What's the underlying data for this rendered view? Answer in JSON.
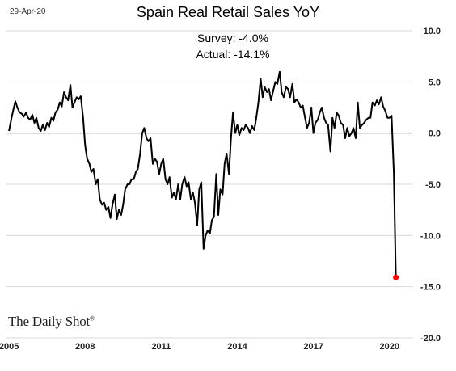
{
  "header": {
    "date": "29-Apr-20",
    "title": "Spain Real Retail Sales YoY"
  },
  "annotations": {
    "survey": "Survey: -4.0%",
    "actual": "Actual:  -14.1%"
  },
  "brand": {
    "text": "The Daily Shot",
    "mark": "®"
  },
  "colors": {
    "line": "#000000",
    "highlight_point": "#ff0000",
    "grid": "#d9d9d9",
    "zero_line": "#000000"
  },
  "chart_data": {
    "type": "line",
    "title": "Spain Real Retail Sales YoY",
    "xlabel": "",
    "ylabel": "",
    "xlim": [
      2004.9,
      2020.9
    ],
    "ylim": [
      -20,
      10
    ],
    "y_axis_position": "right",
    "grid": true,
    "x_ticks": [
      {
        "value": 2005,
        "label": "2005"
      },
      {
        "value": 2008,
        "label": "2008"
      },
      {
        "value": 2011,
        "label": "2011"
      },
      {
        "value": 2014,
        "label": "2014"
      },
      {
        "value": 2017,
        "label": "2017"
      },
      {
        "value": 2020,
        "label": "2020"
      }
    ],
    "y_ticks": [
      {
        "value": 10,
        "label": "10.0"
      },
      {
        "value": 5,
        "label": "5.0"
      },
      {
        "value": 0,
        "label": "0.0"
      },
      {
        "value": -5,
        "label": "-5.0"
      },
      {
        "value": -10,
        "label": "-10.0"
      },
      {
        "value": -15,
        "label": "-15.0"
      },
      {
        "value": -20,
        "label": "-20.0"
      }
    ],
    "series": [
      {
        "points": [
          [
            2005.0,
            0.2
          ],
          [
            2005.1,
            1.5
          ],
          [
            2005.2,
            2.6
          ],
          [
            2005.25,
            3.1
          ],
          [
            2005.33,
            2.5
          ],
          [
            2005.42,
            2.0
          ],
          [
            2005.5,
            1.9
          ],
          [
            2005.58,
            1.6
          ],
          [
            2005.67,
            2.0
          ],
          [
            2005.75,
            1.5
          ],
          [
            2005.83,
            1.3
          ],
          [
            2005.92,
            1.8
          ],
          [
            2006.0,
            1.0
          ],
          [
            2006.08,
            1.5
          ],
          [
            2006.17,
            0.5
          ],
          [
            2006.25,
            0.2
          ],
          [
            2006.33,
            0.8
          ],
          [
            2006.42,
            0.3
          ],
          [
            2006.5,
            1.0
          ],
          [
            2006.58,
            0.6
          ],
          [
            2006.67,
            1.5
          ],
          [
            2006.75,
            1.2
          ],
          [
            2006.83,
            2.0
          ],
          [
            2006.92,
            2.3
          ],
          [
            2007.0,
            3.0
          ],
          [
            2007.08,
            2.6
          ],
          [
            2007.17,
            4.0
          ],
          [
            2007.25,
            3.5
          ],
          [
            2007.33,
            3.2
          ],
          [
            2007.42,
            4.7
          ],
          [
            2007.5,
            2.5
          ],
          [
            2007.58,
            3.0
          ],
          [
            2007.67,
            3.5
          ],
          [
            2007.75,
            3.3
          ],
          [
            2007.83,
            3.6
          ],
          [
            2007.92,
            1.5
          ],
          [
            2008.0,
            -1.2
          ],
          [
            2008.08,
            -2.5
          ],
          [
            2008.17,
            -3.0
          ],
          [
            2008.25,
            -3.8
          ],
          [
            2008.33,
            -3.5
          ],
          [
            2008.42,
            -5.0
          ],
          [
            2008.5,
            -4.5
          ],
          [
            2008.58,
            -6.5
          ],
          [
            2008.67,
            -7.0
          ],
          [
            2008.75,
            -6.8
          ],
          [
            2008.83,
            -7.5
          ],
          [
            2008.92,
            -7.2
          ],
          [
            2009.0,
            -8.3
          ],
          [
            2009.08,
            -7.0
          ],
          [
            2009.17,
            -6.0
          ],
          [
            2009.25,
            -8.4
          ],
          [
            2009.33,
            -7.5
          ],
          [
            2009.42,
            -8.0
          ],
          [
            2009.5,
            -7.0
          ],
          [
            2009.58,
            -5.5
          ],
          [
            2009.67,
            -5.0
          ],
          [
            2009.75,
            -5.0
          ],
          [
            2009.83,
            -4.5
          ],
          [
            2009.92,
            -4.5
          ],
          [
            2010.0,
            -3.8
          ],
          [
            2010.08,
            -3.5
          ],
          [
            2010.17,
            -2.0
          ],
          [
            2010.25,
            0.0
          ],
          [
            2010.33,
            0.5
          ],
          [
            2010.42,
            -0.5
          ],
          [
            2010.5,
            -0.8
          ],
          [
            2010.58,
            -0.5
          ],
          [
            2010.67,
            -3.0
          ],
          [
            2010.75,
            -2.5
          ],
          [
            2010.83,
            -2.8
          ],
          [
            2010.92,
            -4.0
          ],
          [
            2011.0,
            -3.0
          ],
          [
            2011.08,
            -2.5
          ],
          [
            2011.17,
            -4.5
          ],
          [
            2011.25,
            -5.0
          ],
          [
            2011.33,
            -4.3
          ],
          [
            2011.42,
            -6.3
          ],
          [
            2011.5,
            -5.8
          ],
          [
            2011.58,
            -6.5
          ],
          [
            2011.67,
            -5.0
          ],
          [
            2011.75,
            -6.5
          ],
          [
            2011.83,
            -5.0
          ],
          [
            2011.92,
            -4.3
          ],
          [
            2012.0,
            -5.2
          ],
          [
            2012.08,
            -4.8
          ],
          [
            2012.17,
            -6.5
          ],
          [
            2012.25,
            -5.8
          ],
          [
            2012.33,
            -6.8
          ],
          [
            2012.42,
            -9.0
          ],
          [
            2012.5,
            -5.5
          ],
          [
            2012.58,
            -4.8
          ],
          [
            2012.67,
            -11.3
          ],
          [
            2012.75,
            -10.0
          ],
          [
            2012.83,
            -9.5
          ],
          [
            2012.92,
            -9.8
          ],
          [
            2013.0,
            -8.5
          ],
          [
            2013.08,
            -8.2
          ],
          [
            2013.17,
            -4.0
          ],
          [
            2013.25,
            -8.0
          ],
          [
            2013.33,
            -5.5
          ],
          [
            2013.42,
            -6.0
          ],
          [
            2013.5,
            -3.0
          ],
          [
            2013.58,
            -2.0
          ],
          [
            2013.67,
            -4.0
          ],
          [
            2013.75,
            -0.5
          ],
          [
            2013.83,
            2.0
          ],
          [
            2013.92,
            0.0
          ],
          [
            2014.0,
            0.8
          ],
          [
            2014.08,
            -0.2
          ],
          [
            2014.17,
            0.5
          ],
          [
            2014.25,
            0.3
          ],
          [
            2014.33,
            0.8
          ],
          [
            2014.42,
            0.5
          ],
          [
            2014.5,
            0.0
          ],
          [
            2014.58,
            0.7
          ],
          [
            2014.67,
            0.3
          ],
          [
            2014.75,
            1.5
          ],
          [
            2014.83,
            3.0
          ],
          [
            2014.92,
            5.3
          ],
          [
            2015.0,
            3.5
          ],
          [
            2015.08,
            4.5
          ],
          [
            2015.17,
            4.0
          ],
          [
            2015.25,
            4.3
          ],
          [
            2015.33,
            3.2
          ],
          [
            2015.42,
            4.2
          ],
          [
            2015.5,
            5.0
          ],
          [
            2015.58,
            4.8
          ],
          [
            2015.67,
            6.0
          ],
          [
            2015.75,
            4.0
          ],
          [
            2015.83,
            3.5
          ],
          [
            2015.92,
            4.5
          ],
          [
            2016.0,
            4.3
          ],
          [
            2016.08,
            3.5
          ],
          [
            2016.17,
            4.8
          ],
          [
            2016.25,
            3.0
          ],
          [
            2016.33,
            3.3
          ],
          [
            2016.42,
            3.0
          ],
          [
            2016.5,
            2.5
          ],
          [
            2016.58,
            2.7
          ],
          [
            2016.67,
            1.5
          ],
          [
            2016.75,
            0.5
          ],
          [
            2016.83,
            1.0
          ],
          [
            2016.92,
            2.5
          ],
          [
            2017.0,
            0.0
          ],
          [
            2017.08,
            1.0
          ],
          [
            2017.17,
            1.3
          ],
          [
            2017.25,
            2.0
          ],
          [
            2017.33,
            2.5
          ],
          [
            2017.42,
            1.5
          ],
          [
            2017.5,
            1.0
          ],
          [
            2017.58,
            0.8
          ],
          [
            2017.67,
            -1.8
          ],
          [
            2017.75,
            1.5
          ],
          [
            2017.83,
            0.5
          ],
          [
            2017.92,
            2.0
          ],
          [
            2018.0,
            1.7
          ],
          [
            2018.08,
            1.0
          ],
          [
            2018.17,
            0.8
          ],
          [
            2018.25,
            -0.5
          ],
          [
            2018.33,
            0.5
          ],
          [
            2018.42,
            -0.3
          ],
          [
            2018.5,
            0.0
          ],
          [
            2018.58,
            0.5
          ],
          [
            2018.67,
            -0.5
          ],
          [
            2018.75,
            3.0
          ],
          [
            2018.83,
            0.5
          ],
          [
            2018.92,
            0.8
          ],
          [
            2019.0,
            1.0
          ],
          [
            2019.08,
            1.3
          ],
          [
            2019.17,
            1.5
          ],
          [
            2019.25,
            1.5
          ],
          [
            2019.33,
            3.0
          ],
          [
            2019.42,
            2.7
          ],
          [
            2019.5,
            3.2
          ],
          [
            2019.58,
            2.8
          ],
          [
            2019.67,
            3.5
          ],
          [
            2019.75,
            2.6
          ],
          [
            2019.83,
            2.2
          ],
          [
            2019.92,
            1.5
          ],
          [
            2020.0,
            1.5
          ],
          [
            2020.08,
            1.7
          ],
          [
            2020.17,
            -3.8
          ],
          [
            2020.25,
            -14.1
          ]
        ]
      }
    ],
    "highlight": {
      "x": 2020.25,
      "y": -14.1
    }
  }
}
